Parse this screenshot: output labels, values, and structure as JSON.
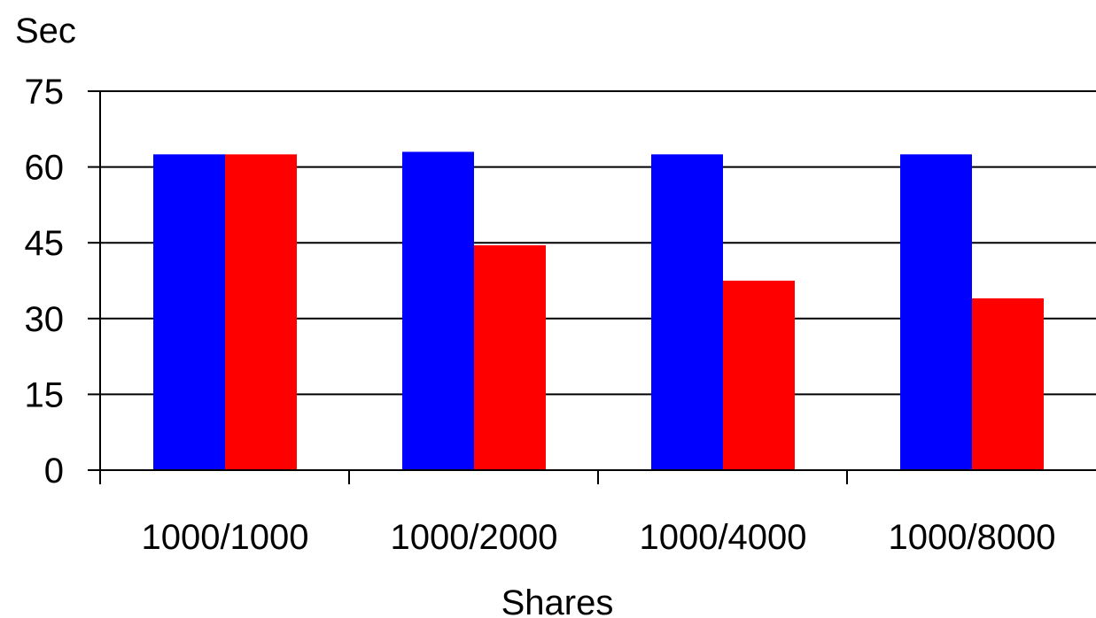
{
  "chart_data": {
    "type": "bar",
    "title": "",
    "xlabel": "Shares",
    "ylabel": "Sec",
    "categories": [
      "1000/1000",
      "1000/2000",
      "1000/4000",
      "1000/8000"
    ],
    "series": [
      {
        "color": "#0000ff",
        "values": [
          62.5,
          63,
          62.5,
          62.5
        ]
      },
      {
        "color": "#ff0000",
        "values": [
          62.5,
          44.5,
          37.5,
          34
        ]
      }
    ],
    "ylim": [
      0,
      75
    ],
    "yticks": [
      "0",
      "15",
      "30",
      "45",
      "60",
      "75"
    ],
    "grid": true,
    "legend": "none"
  }
}
